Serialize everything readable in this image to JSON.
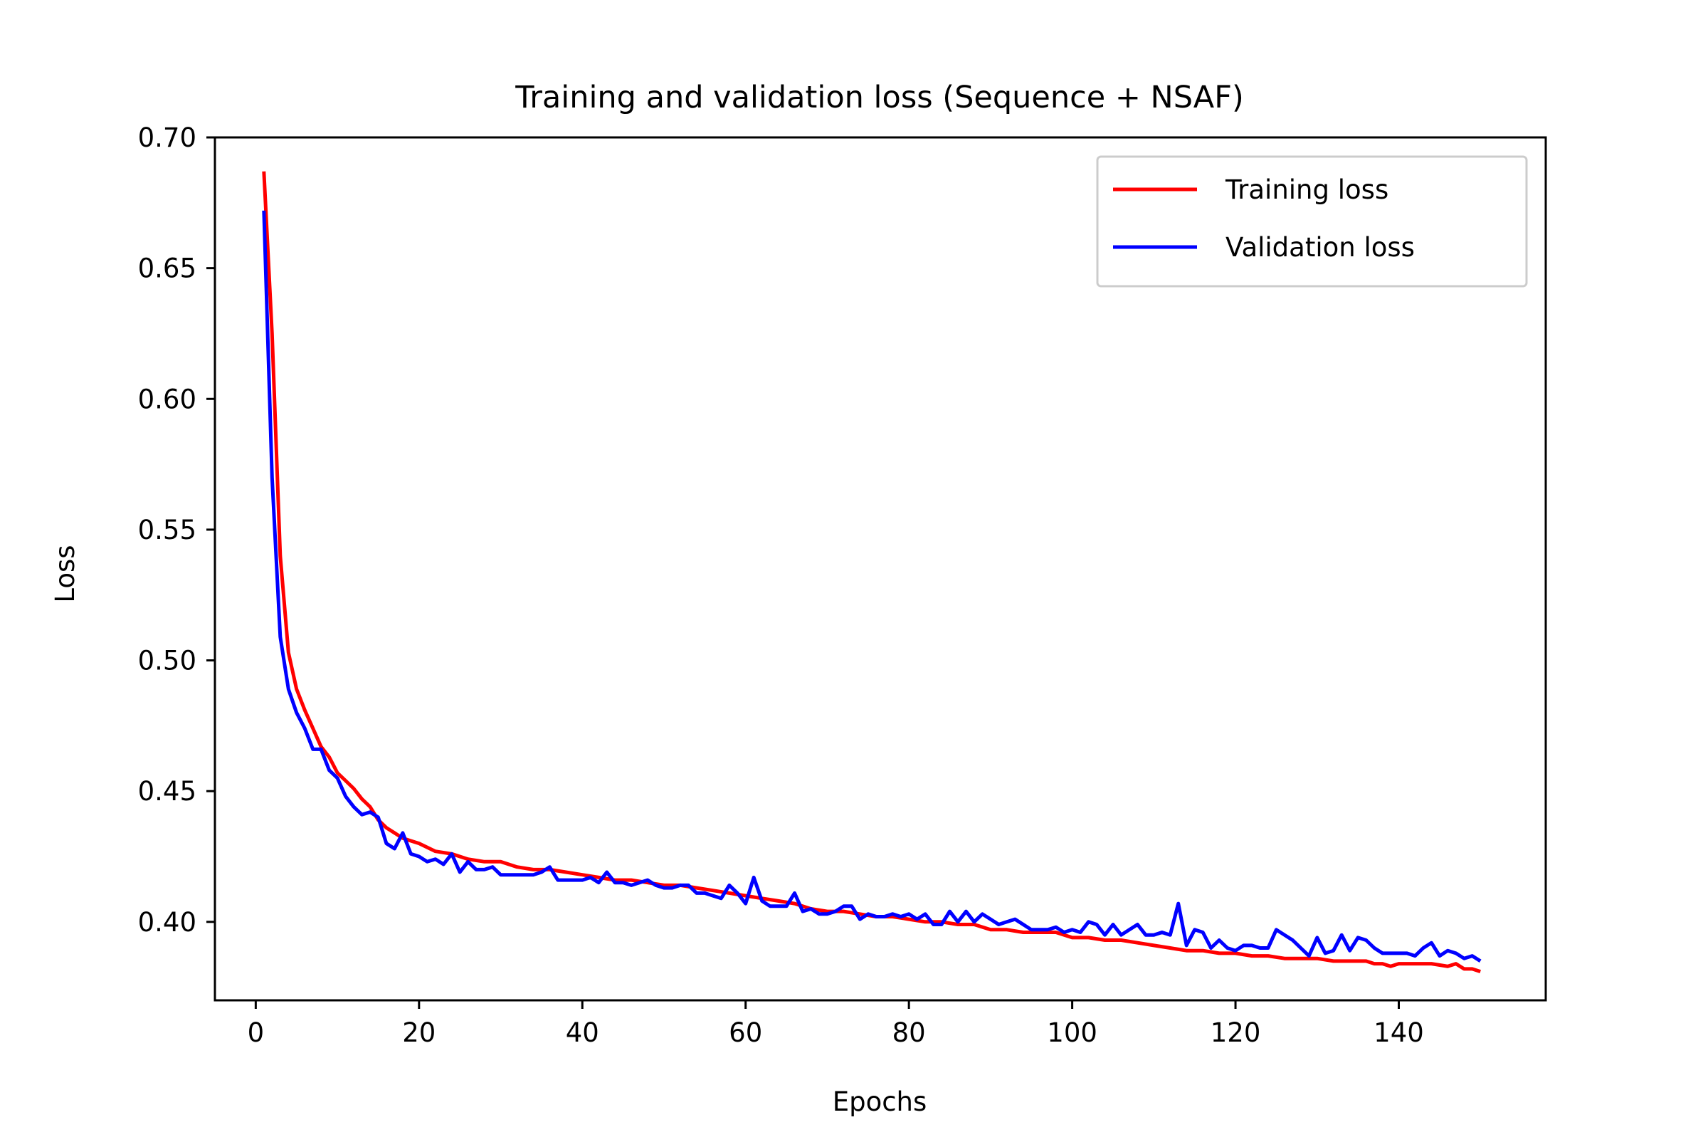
{
  "chart_data": {
    "type": "line",
    "title": "Training and validation loss (Sequence + NSAF)",
    "xlabel": "Epochs",
    "ylabel": "Loss",
    "xlim": [
      -5,
      158
    ],
    "ylim": [
      0.37,
      0.7
    ],
    "x_ticks": [
      0,
      20,
      40,
      60,
      80,
      100,
      120,
      140
    ],
    "x_tick_labels": [
      "0",
      "20",
      "40",
      "60",
      "80",
      "100",
      "120",
      "140"
    ],
    "y_ticks": [
      0.4,
      0.45,
      0.5,
      0.55,
      0.6,
      0.65,
      0.7
    ],
    "y_tick_labels": [
      "0.40",
      "0.45",
      "0.50",
      "0.55",
      "0.60",
      "0.65",
      "0.70"
    ],
    "grid": false,
    "legend_position": "upper right",
    "series": [
      {
        "name": "Training loss",
        "color": "#ff0000",
        "x": [
          1,
          2,
          3,
          4,
          5,
          6,
          7,
          8,
          9,
          10,
          11,
          12,
          13,
          14,
          15,
          16,
          17,
          18,
          19,
          20,
          22,
          24,
          26,
          28,
          30,
          32,
          34,
          36,
          38,
          40,
          42,
          44,
          46,
          48,
          50,
          52,
          54,
          56,
          58,
          60,
          62,
          64,
          66,
          68,
          70,
          72,
          74,
          76,
          78,
          80,
          82,
          84,
          86,
          88,
          90,
          92,
          94,
          96,
          98,
          100,
          102,
          104,
          106,
          108,
          110,
          112,
          114,
          116,
          118,
          120,
          122,
          124,
          126,
          128,
          130,
          132,
          134,
          136,
          137,
          138,
          139,
          140,
          142,
          144,
          146,
          147,
          148,
          149,
          150
        ],
        "values": [
          0.687,
          0.625,
          0.54,
          0.503,
          0.489,
          0.481,
          0.474,
          0.467,
          0.463,
          0.457,
          0.454,
          0.451,
          0.447,
          0.444,
          0.439,
          0.436,
          0.434,
          0.432,
          0.431,
          0.43,
          0.427,
          0.426,
          0.424,
          0.423,
          0.423,
          0.421,
          0.42,
          0.42,
          0.419,
          0.418,
          0.417,
          0.416,
          0.416,
          0.415,
          0.414,
          0.414,
          0.413,
          0.412,
          0.411,
          0.41,
          0.409,
          0.408,
          0.407,
          0.405,
          0.404,
          0.404,
          0.403,
          0.402,
          0.402,
          0.401,
          0.4,
          0.4,
          0.399,
          0.399,
          0.397,
          0.397,
          0.396,
          0.396,
          0.396,
          0.394,
          0.394,
          0.393,
          0.393,
          0.392,
          0.391,
          0.39,
          0.389,
          0.389,
          0.388,
          0.388,
          0.387,
          0.387,
          0.386,
          0.386,
          0.386,
          0.385,
          0.385,
          0.385,
          0.384,
          0.384,
          0.383,
          0.384,
          0.384,
          0.384,
          0.383,
          0.384,
          0.382,
          0.382,
          0.381
        ]
      },
      {
        "name": "Validation loss",
        "color": "#0000ff",
        "x": [
          1,
          2,
          3,
          4,
          5,
          6,
          7,
          8,
          9,
          10,
          11,
          12,
          13,
          14,
          15,
          16,
          17,
          18,
          19,
          20,
          21,
          22,
          23,
          24,
          25,
          26,
          27,
          28,
          29,
          30,
          31,
          32,
          33,
          34,
          35,
          36,
          37,
          38,
          39,
          40,
          41,
          42,
          43,
          44,
          45,
          46,
          47,
          48,
          49,
          50,
          51,
          52,
          53,
          54,
          55,
          56,
          57,
          58,
          59,
          60,
          61,
          62,
          63,
          64,
          65,
          66,
          67,
          68,
          69,
          70,
          71,
          72,
          73,
          74,
          75,
          76,
          77,
          78,
          79,
          80,
          81,
          82,
          83,
          84,
          85,
          86,
          87,
          88,
          89,
          90,
          91,
          92,
          93,
          94,
          95,
          96,
          97,
          98,
          99,
          100,
          101,
          102,
          103,
          104,
          105,
          106,
          107,
          108,
          109,
          110,
          111,
          112,
          113,
          114,
          115,
          116,
          117,
          118,
          119,
          120,
          121,
          122,
          123,
          124,
          125,
          126,
          127,
          128,
          129,
          130,
          131,
          132,
          133,
          134,
          135,
          136,
          137,
          138,
          139,
          140,
          141,
          142,
          143,
          144,
          145,
          146,
          147,
          148,
          149,
          150
        ],
        "values": [
          0.672,
          0.57,
          0.509,
          0.489,
          0.48,
          0.474,
          0.466,
          0.466,
          0.458,
          0.455,
          0.448,
          0.444,
          0.441,
          0.442,
          0.44,
          0.43,
          0.428,
          0.434,
          0.426,
          0.425,
          0.423,
          0.424,
          0.422,
          0.426,
          0.419,
          0.423,
          0.42,
          0.42,
          0.421,
          0.418,
          0.418,
          0.418,
          0.418,
          0.418,
          0.419,
          0.421,
          0.416,
          0.416,
          0.416,
          0.416,
          0.417,
          0.415,
          0.419,
          0.415,
          0.415,
          0.414,
          0.415,
          0.416,
          0.414,
          0.413,
          0.413,
          0.414,
          0.414,
          0.411,
          0.411,
          0.41,
          0.409,
          0.414,
          0.411,
          0.407,
          0.417,
          0.408,
          0.406,
          0.406,
          0.406,
          0.411,
          0.404,
          0.405,
          0.403,
          0.403,
          0.404,
          0.406,
          0.406,
          0.401,
          0.403,
          0.402,
          0.402,
          0.403,
          0.402,
          0.403,
          0.401,
          0.403,
          0.399,
          0.399,
          0.404,
          0.4,
          0.404,
          0.4,
          0.403,
          0.401,
          0.399,
          0.4,
          0.401,
          0.399,
          0.397,
          0.397,
          0.397,
          0.398,
          0.396,
          0.397,
          0.396,
          0.4,
          0.399,
          0.395,
          0.399,
          0.395,
          0.397,
          0.399,
          0.395,
          0.395,
          0.396,
          0.395,
          0.407,
          0.391,
          0.397,
          0.396,
          0.39,
          0.393,
          0.39,
          0.389,
          0.391,
          0.391,
          0.39,
          0.39,
          0.397,
          0.395,
          0.393,
          0.39,
          0.387,
          0.394,
          0.388,
          0.389,
          0.395,
          0.389,
          0.394,
          0.393,
          0.39,
          0.388,
          0.388,
          0.388,
          0.388,
          0.387,
          0.39,
          0.392,
          0.387,
          0.389,
          0.388,
          0.386,
          0.387,
          0.385
        ]
      }
    ]
  }
}
